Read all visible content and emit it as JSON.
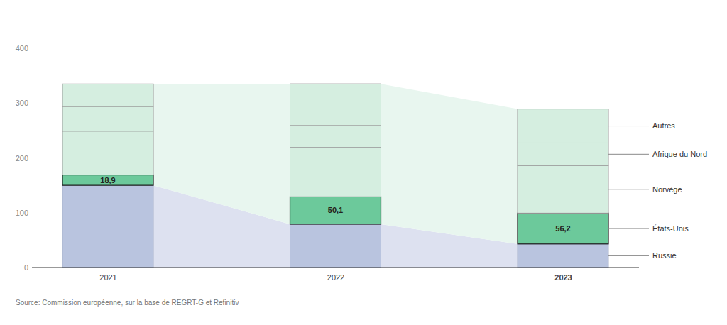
{
  "chart_data": {
    "type": "bar",
    "stacked": true,
    "grid": false,
    "legend": "right",
    "source": "Source: Commission européenne, sur la base de REGRT-G et Refinitiv",
    "categories": [
      "2021",
      "2022",
      "2023"
    ],
    "ylim": [
      0,
      400
    ],
    "yticks": [
      0,
      100,
      200,
      300,
      400
    ],
    "series": [
      {
        "name": "Russie",
        "color": "#b9c4df",
        "values": [
          150,
          79,
          43
        ]
      },
      {
        "name": "États-Unis",
        "color": "#6cc99b",
        "values": [
          18.9,
          50.1,
          56.2
        ],
        "data_labels": true,
        "value_labels": [
          "18,9",
          "50,1",
          "56,2"
        ]
      },
      {
        "name": "Norvège",
        "color": "#d5eee0",
        "values": [
          80,
          90,
          87
        ]
      },
      {
        "name": "Afrique du Nord",
        "color": "#d5eee0",
        "values": [
          45,
          40,
          41
        ]
      },
      {
        "name": "Autres",
        "color": "#d5eee0",
        "values": [
          41,
          76,
          62
        ]
      }
    ]
  }
}
